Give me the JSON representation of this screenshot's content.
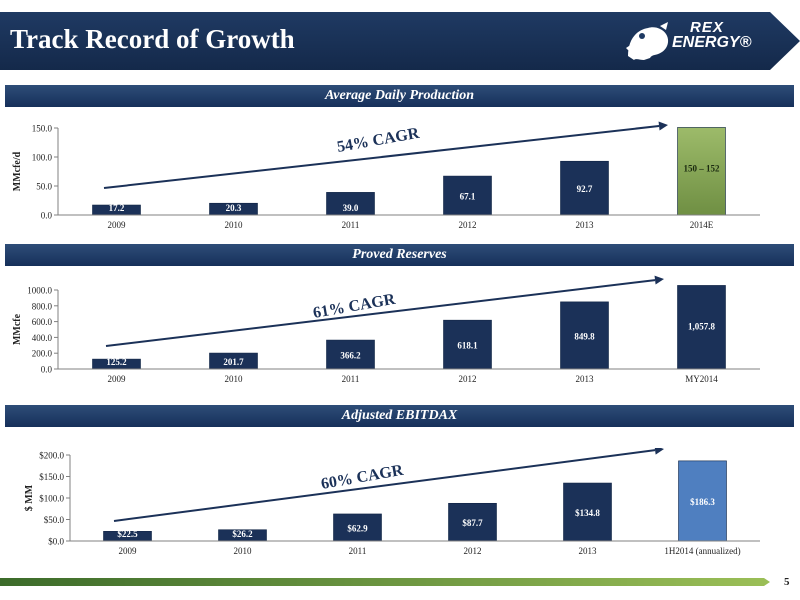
{
  "header": {
    "title": "Track Record of Growth",
    "logo_line1": "REX",
    "logo_line2": "ENERGY®"
  },
  "footer": {
    "page_number": "5"
  },
  "chart_data": [
    {
      "type": "bar",
      "band_label": "Average Daily Production",
      "ylabel": "MMcfe/d",
      "ylim": [
        0,
        150
      ],
      "yticks": [
        "0.0",
        "50.0",
        "100.0",
        "150.0"
      ],
      "categories": [
        "2009",
        "2010",
        "2011",
        "2012",
        "2013",
        "2014E"
      ],
      "values": [
        17.2,
        20.3,
        39.0,
        67.1,
        92.7,
        151
      ],
      "labels": [
        "17.2",
        "20.3",
        "39.0",
        "67.1",
        "92.7",
        "150 – 152"
      ],
      "highlight_last": true,
      "cagr": "54% CAGR",
      "colors": {
        "bar": "#1b3158",
        "highlight": "#8aa859"
      }
    },
    {
      "type": "bar",
      "band_label": "Proved Reserves",
      "ylabel": "MMcfe",
      "ylim": [
        0,
        1000
      ],
      "yticks": [
        "0.0",
        "200.0",
        "400.0",
        "600.0",
        "800.0",
        "1000.0"
      ],
      "categories": [
        "2009",
        "2010",
        "2011",
        "2012",
        "2013",
        "MY2014"
      ],
      "values": [
        125.2,
        201.7,
        366.2,
        618.1,
        849.8,
        1057.8
      ],
      "labels": [
        "125.2",
        "201.7",
        "366.2",
        "618.1",
        "849.8",
        "1,057.8"
      ],
      "highlight_last": false,
      "cagr": "61% CAGR",
      "colors": {
        "bar": "#1b3158"
      }
    },
    {
      "type": "bar",
      "band_label": "Adjusted EBITDAX",
      "ylabel": "$ MM",
      "ylim": [
        0,
        200
      ],
      "yticks": [
        "$0.0",
        "$50.0",
        "$100.0",
        "$150.0",
        "$200.0"
      ],
      "categories": [
        "2009",
        "2010",
        "2011",
        "2012",
        "2013",
        "1H2014 (annualized)"
      ],
      "values": [
        22.5,
        26.2,
        62.9,
        87.7,
        134.8,
        186.3
      ],
      "labels": [
        "$22.5",
        "$26.2",
        "$62.9",
        "$87.7",
        "$134.8",
        "$186.3"
      ],
      "highlight_last": false,
      "last_color": "#4f7fc0",
      "cagr": "60% CAGR",
      "colors": {
        "bar": "#1b3158"
      }
    }
  ]
}
